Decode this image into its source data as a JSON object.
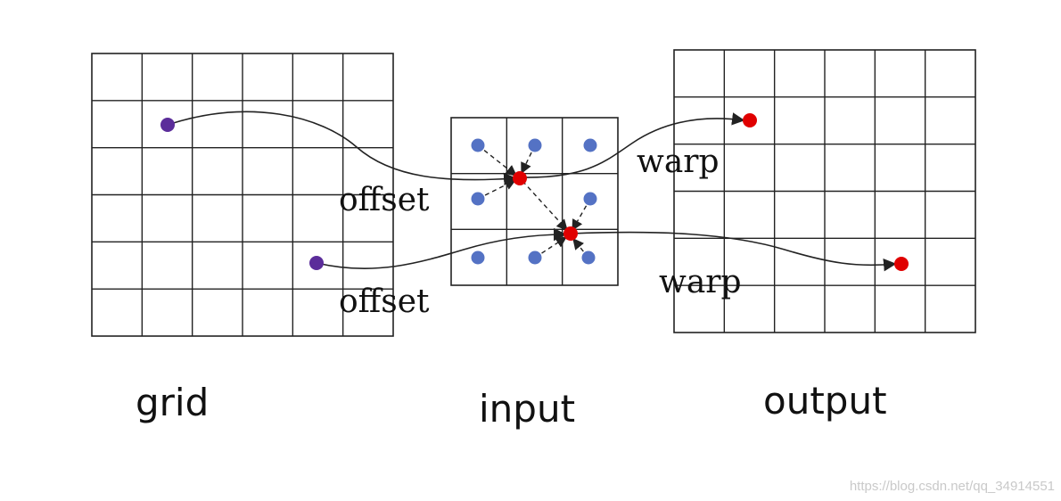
{
  "labels": {
    "grid": "grid",
    "input": "input",
    "output": "output",
    "offset_top": "offset",
    "offset_bottom": "offset",
    "warp_top": "warp",
    "warp_bottom": "warp"
  },
  "watermark": "https://blog.csdn.net/qq_34914551",
  "grids": {
    "grid": {
      "rows": 6,
      "cols": 6
    },
    "input": {
      "rows": 3,
      "cols": 3
    },
    "output": {
      "rows": 6,
      "cols": 6
    }
  },
  "colors": {
    "grid_point": "#5b2d9a",
    "input_point": "#5472c4",
    "sample_point": "#e00000",
    "line": "#222222"
  }
}
